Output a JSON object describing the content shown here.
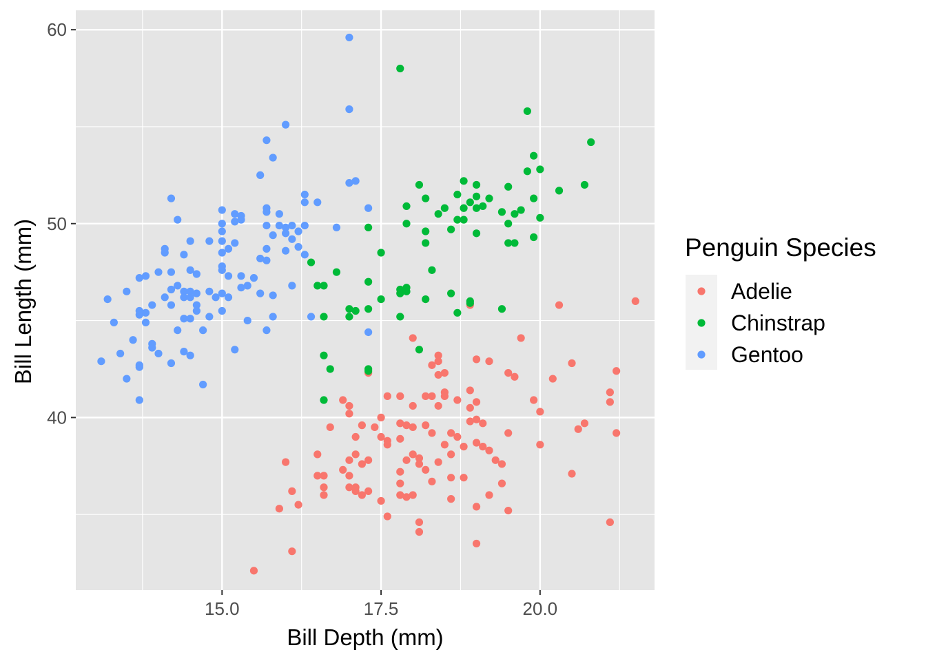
{
  "chart_data": {
    "type": "scatter",
    "title": "",
    "xlabel": "Bill Depth (mm)",
    "ylabel": "Bill Length (mm)",
    "xlim": [
      12.7,
      21.8
    ],
    "ylim": [
      31.1,
      61.0
    ],
    "x_ticks": [
      15.0,
      17.5,
      20.0
    ],
    "x_tick_labels": [
      "15.0",
      "17.5",
      "20.0"
    ],
    "y_ticks": [
      40,
      50,
      60
    ],
    "y_tick_labels": [
      "40",
      "50",
      "60"
    ],
    "grid": true,
    "background": "#e5e5e5",
    "legend": {
      "title": "Penguin Species",
      "position": "right"
    },
    "series": [
      {
        "name": "Adelie",
        "color": "#f8766d",
        "points": [
          [
            15.5,
            32.1
          ],
          [
            16.1,
            33.1
          ],
          [
            15.9,
            35.3
          ],
          [
            16.2,
            35.5
          ],
          [
            16.6,
            36.0
          ],
          [
            16.6,
            36.4
          ],
          [
            16.1,
            36.2
          ],
          [
            16.0,
            37.7
          ],
          [
            16.5,
            37.0
          ],
          [
            16.5,
            38.1
          ],
          [
            16.7,
            39.5
          ],
          [
            16.9,
            40.9
          ],
          [
            16.9,
            37.3
          ],
          [
            17.0,
            37.0
          ],
          [
            17.1,
            36.4
          ],
          [
            17.2,
            36.0
          ],
          [
            17.0,
            36.4
          ],
          [
            17.1,
            36.2
          ],
          [
            17.0,
            37.8
          ],
          [
            17.1,
            39.0
          ],
          [
            17.0,
            40.6
          ],
          [
            17.0,
            40.2
          ],
          [
            17.2,
            39.6
          ],
          [
            17.1,
            38.1
          ],
          [
            17.2,
            37.6
          ],
          [
            17.3,
            36.2
          ],
          [
            17.4,
            39.5
          ],
          [
            17.3,
            37.8
          ],
          [
            17.5,
            39.0
          ],
          [
            17.5,
            40.0
          ],
          [
            17.5,
            35.7
          ],
          [
            17.6,
            41.1
          ],
          [
            17.6,
            38.8
          ],
          [
            17.6,
            38.6
          ],
          [
            17.8,
            38.9
          ],
          [
            17.8,
            39.7
          ],
          [
            17.8,
            37.2
          ],
          [
            17.8,
            36.6
          ],
          [
            17.8,
            36.0
          ],
          [
            17.9,
            39.6
          ],
          [
            17.9,
            37.8
          ],
          [
            18.0,
            39.5
          ],
          [
            18.0,
            36.0
          ],
          [
            18.0,
            38.1
          ],
          [
            18.1,
            37.6
          ],
          [
            18.1,
            37.9
          ],
          [
            18.1,
            34.6
          ],
          [
            18.1,
            34.1
          ],
          [
            18.2,
            41.1
          ],
          [
            18.2,
            39.6
          ],
          [
            18.3,
            36.7
          ],
          [
            18.3,
            41.1
          ],
          [
            18.4,
            40.6
          ],
          [
            18.4,
            37.7
          ],
          [
            18.4,
            42.2
          ],
          [
            18.5,
            41.3
          ],
          [
            18.5,
            41.1
          ],
          [
            18.6,
            39.2
          ],
          [
            18.6,
            38.1
          ],
          [
            18.6,
            36.9
          ],
          [
            18.7,
            40.9
          ],
          [
            18.7,
            39.0
          ],
          [
            18.8,
            38.5
          ],
          [
            18.9,
            41.4
          ],
          [
            18.9,
            40.5
          ],
          [
            18.9,
            39.8
          ],
          [
            19.0,
            40.8
          ],
          [
            19.0,
            39.9
          ],
          [
            19.0,
            38.7
          ],
          [
            19.0,
            35.4
          ],
          [
            19.0,
            33.5
          ],
          [
            19.1,
            39.7
          ],
          [
            19.2,
            38.3
          ],
          [
            19.2,
            36.0
          ],
          [
            19.3,
            37.8
          ],
          [
            19.4,
            37.6
          ],
          [
            19.4,
            36.6
          ],
          [
            19.5,
            39.2
          ],
          [
            19.5,
            35.2
          ],
          [
            19.6,
            42.1
          ],
          [
            19.9,
            40.9
          ],
          [
            20.0,
            38.6
          ],
          [
            20.0,
            40.3
          ],
          [
            20.2,
            42.0
          ],
          [
            20.3,
            45.8
          ],
          [
            20.5,
            42.8
          ],
          [
            20.5,
            37.1
          ],
          [
            20.6,
            39.4
          ],
          [
            20.7,
            39.7
          ],
          [
            21.1,
            41.3
          ],
          [
            21.1,
            40.8
          ],
          [
            21.2,
            42.4
          ],
          [
            21.2,
            39.2
          ],
          [
            21.1,
            34.6
          ],
          [
            21.5,
            46.0
          ],
          [
            17.3,
            42.3
          ],
          [
            18.0,
            44.1
          ],
          [
            18.4,
            43.2
          ],
          [
            18.4,
            42.9
          ],
          [
            19.0,
            43.0
          ],
          [
            19.2,
            42.9
          ],
          [
            19.5,
            42.3
          ],
          [
            19.7,
            44.1
          ],
          [
            18.5,
            42.3
          ],
          [
            18.9,
            45.8
          ],
          [
            18.3,
            42.7
          ],
          [
            17.8,
            41.1
          ],
          [
            18.2,
            37.3
          ],
          [
            18.5,
            38.6
          ],
          [
            18.8,
            36.9
          ],
          [
            19.1,
            38.5
          ],
          [
            17.9,
            35.9
          ],
          [
            18.6,
            35.8
          ],
          [
            18.0,
            40.6
          ],
          [
            17.6,
            34.9
          ],
          [
            16.6,
            37.0
          ],
          [
            18.3,
            39.2
          ]
        ]
      },
      {
        "name": "Chinstrap",
        "color": "#00ba38",
        "points": [
          [
            16.4,
            48.0
          ],
          [
            16.5,
            46.8
          ],
          [
            16.6,
            46.8
          ],
          [
            16.6,
            45.2
          ],
          [
            16.6,
            43.2
          ],
          [
            16.6,
            40.9
          ],
          [
            16.7,
            42.5
          ],
          [
            16.8,
            47.5
          ],
          [
            17.0,
            45.6
          ],
          [
            17.0,
            45.2
          ],
          [
            17.1,
            45.5
          ],
          [
            17.3,
            49.8
          ],
          [
            17.3,
            47.0
          ],
          [
            17.3,
            45.6
          ],
          [
            17.3,
            42.5
          ],
          [
            17.3,
            42.4
          ],
          [
            17.5,
            48.5
          ],
          [
            17.5,
            46.1
          ],
          [
            17.8,
            58.0
          ],
          [
            17.8,
            46.6
          ],
          [
            17.8,
            46.4
          ],
          [
            17.8,
            45.2
          ],
          [
            17.9,
            50.9
          ],
          [
            17.9,
            50.0
          ],
          [
            17.9,
            46.7
          ],
          [
            17.9,
            46.5
          ],
          [
            18.1,
            52.0
          ],
          [
            18.1,
            43.5
          ],
          [
            18.2,
            51.3
          ],
          [
            18.2,
            49.6
          ],
          [
            18.2,
            49.0
          ],
          [
            18.2,
            46.1
          ],
          [
            18.3,
            47.6
          ],
          [
            18.4,
            50.5
          ],
          [
            18.5,
            50.8
          ],
          [
            18.6,
            49.7
          ],
          [
            18.6,
            46.4
          ],
          [
            18.7,
            51.5
          ],
          [
            18.7,
            50.2
          ],
          [
            18.7,
            45.4
          ],
          [
            18.8,
            52.2
          ],
          [
            18.8,
            50.2
          ],
          [
            18.8,
            50.8
          ],
          [
            18.9,
            51.1
          ],
          [
            18.9,
            46.0
          ],
          [
            19.0,
            52.0
          ],
          [
            19.0,
            51.4
          ],
          [
            19.0,
            50.8
          ],
          [
            19.0,
            49.5
          ],
          [
            19.1,
            50.9
          ],
          [
            19.2,
            51.3
          ],
          [
            19.4,
            50.6
          ],
          [
            19.4,
            45.6
          ],
          [
            19.5,
            51.9
          ],
          [
            19.5,
            50.0
          ],
          [
            19.5,
            49.0
          ],
          [
            19.6,
            50.5
          ],
          [
            19.6,
            49.0
          ],
          [
            19.7,
            50.7
          ],
          [
            19.8,
            55.8
          ],
          [
            19.8,
            52.7
          ],
          [
            19.9,
            53.5
          ],
          [
            19.9,
            51.3
          ],
          [
            19.9,
            49.3
          ],
          [
            20.0,
            52.8
          ],
          [
            20.0,
            50.3
          ],
          [
            20.3,
            51.7
          ],
          [
            20.7,
            52.0
          ],
          [
            20.8,
            54.2
          ],
          [
            18.9,
            45.9
          ]
        ]
      },
      {
        "name": "Gentoo",
        "color": "#619cff",
        "points": [
          [
            13.1,
            42.9
          ],
          [
            13.2,
            46.1
          ],
          [
            13.3,
            44.9
          ],
          [
            13.4,
            43.3
          ],
          [
            13.5,
            46.5
          ],
          [
            13.5,
            42.0
          ],
          [
            13.6,
            44.0
          ],
          [
            13.7,
            47.2
          ],
          [
            13.7,
            45.5
          ],
          [
            13.7,
            45.3
          ],
          [
            13.7,
            42.7
          ],
          [
            13.7,
            42.6
          ],
          [
            13.7,
            40.9
          ],
          [
            13.8,
            47.3
          ],
          [
            13.8,
            45.4
          ],
          [
            13.8,
            44.9
          ],
          [
            13.9,
            45.8
          ],
          [
            13.9,
            43.8
          ],
          [
            13.9,
            43.6
          ],
          [
            14.0,
            43.3
          ],
          [
            14.0,
            47.5
          ],
          [
            14.1,
            48.7
          ],
          [
            14.1,
            48.5
          ],
          [
            14.1,
            46.2
          ],
          [
            14.2,
            51.3
          ],
          [
            14.2,
            47.5
          ],
          [
            14.2,
            46.6
          ],
          [
            14.2,
            45.8
          ],
          [
            14.2,
            42.8
          ],
          [
            14.3,
            50.2
          ],
          [
            14.3,
            46.8
          ],
          [
            14.3,
            44.5
          ],
          [
            14.4,
            48.4
          ],
          [
            14.4,
            46.5
          ],
          [
            14.4,
            46.2
          ],
          [
            14.4,
            45.1
          ],
          [
            14.4,
            43.4
          ],
          [
            14.5,
            49.1
          ],
          [
            14.5,
            47.6
          ],
          [
            14.5,
            46.5
          ],
          [
            14.5,
            46.2
          ],
          [
            14.5,
            45.1
          ],
          [
            14.5,
            43.2
          ],
          [
            14.6,
            47.4
          ],
          [
            14.6,
            46.4
          ],
          [
            14.6,
            45.5
          ],
          [
            14.6,
            45.8
          ],
          [
            14.7,
            44.5
          ],
          [
            14.7,
            41.7
          ],
          [
            14.8,
            49.1
          ],
          [
            14.8,
            46.5
          ],
          [
            14.8,
            45.2
          ],
          [
            14.9,
            46.2
          ],
          [
            15.0,
            50.7
          ],
          [
            15.0,
            50.0
          ],
          [
            15.0,
            49.6
          ],
          [
            15.0,
            49.1
          ],
          [
            15.0,
            48.5
          ],
          [
            15.0,
            47.8
          ],
          [
            15.0,
            47.6
          ],
          [
            15.0,
            46.4
          ],
          [
            15.0,
            45.5
          ],
          [
            15.1,
            48.7
          ],
          [
            15.1,
            47.3
          ],
          [
            15.1,
            46.2
          ],
          [
            15.2,
            50.5
          ],
          [
            15.2,
            50.1
          ],
          [
            15.2,
            49.0
          ],
          [
            15.2,
            43.5
          ],
          [
            15.3,
            50.4
          ],
          [
            15.3,
            50.2
          ],
          [
            15.3,
            47.3
          ],
          [
            15.3,
            46.7
          ],
          [
            15.4,
            46.8
          ],
          [
            15.4,
            45.0
          ],
          [
            15.5,
            47.2
          ],
          [
            15.6,
            52.5
          ],
          [
            15.6,
            48.2
          ],
          [
            15.6,
            46.4
          ],
          [
            15.7,
            54.3
          ],
          [
            15.7,
            50.8
          ],
          [
            15.7,
            50.6
          ],
          [
            15.7,
            49.9
          ],
          [
            15.7,
            48.7
          ],
          [
            15.7,
            48.1
          ],
          [
            15.7,
            44.5
          ],
          [
            15.8,
            53.4
          ],
          [
            15.8,
            49.4
          ],
          [
            15.8,
            46.3
          ],
          [
            15.8,
            45.2
          ],
          [
            15.9,
            50.5
          ],
          [
            15.9,
            49.9
          ],
          [
            16.0,
            55.1
          ],
          [
            16.0,
            49.8
          ],
          [
            16.0,
            49.5
          ],
          [
            16.0,
            48.6
          ],
          [
            16.1,
            49.9
          ],
          [
            16.1,
            49.2
          ],
          [
            16.1,
            46.8
          ],
          [
            16.2,
            49.6
          ],
          [
            16.2,
            48.8
          ],
          [
            16.3,
            51.5
          ],
          [
            16.3,
            51.1
          ],
          [
            16.3,
            49.9
          ],
          [
            16.3,
            48.4
          ],
          [
            16.4,
            45.2
          ],
          [
            16.5,
            51.1
          ],
          [
            16.8,
            49.8
          ],
          [
            17.0,
            59.6
          ],
          [
            17.0,
            55.9
          ],
          [
            17.0,
            52.1
          ],
          [
            17.1,
            52.2
          ],
          [
            17.3,
            50.8
          ],
          [
            17.3,
            44.4
          ]
        ]
      }
    ]
  }
}
